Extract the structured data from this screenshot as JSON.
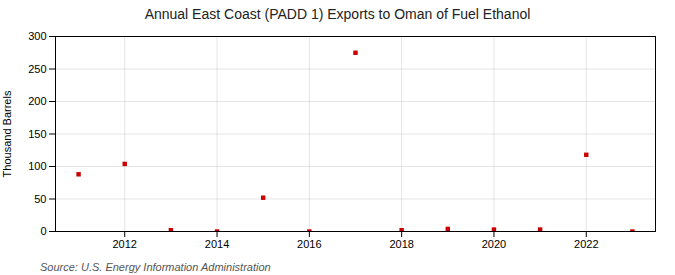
{
  "chart_data": {
    "type": "scatter",
    "title": "Annual East Coast (PADD 1) Exports to Oman of Fuel Ethanol",
    "ylabel": "Thousand Barrels",
    "annotations": [
      "Source: U.S. Energy Information Administration"
    ],
    "x": [
      2011,
      2012,
      2013,
      2014,
      2015,
      2016,
      2017,
      2018,
      2019,
      2020,
      2021,
      2022,
      2023
    ],
    "values": [
      88,
      104,
      2,
      0,
      52,
      0,
      275,
      2,
      4,
      3,
      3,
      118,
      0
    ],
    "color": "#cc0000",
    "marker": "square",
    "xlim": [
      2010.5,
      2023.5
    ],
    "xticks": [
      2012,
      2014,
      2016,
      2018,
      2020,
      2022
    ],
    "ylim": [
      0,
      300
    ],
    "yticks": [
      0,
      50,
      100,
      150,
      200,
      250,
      300
    ],
    "grid": true
  }
}
